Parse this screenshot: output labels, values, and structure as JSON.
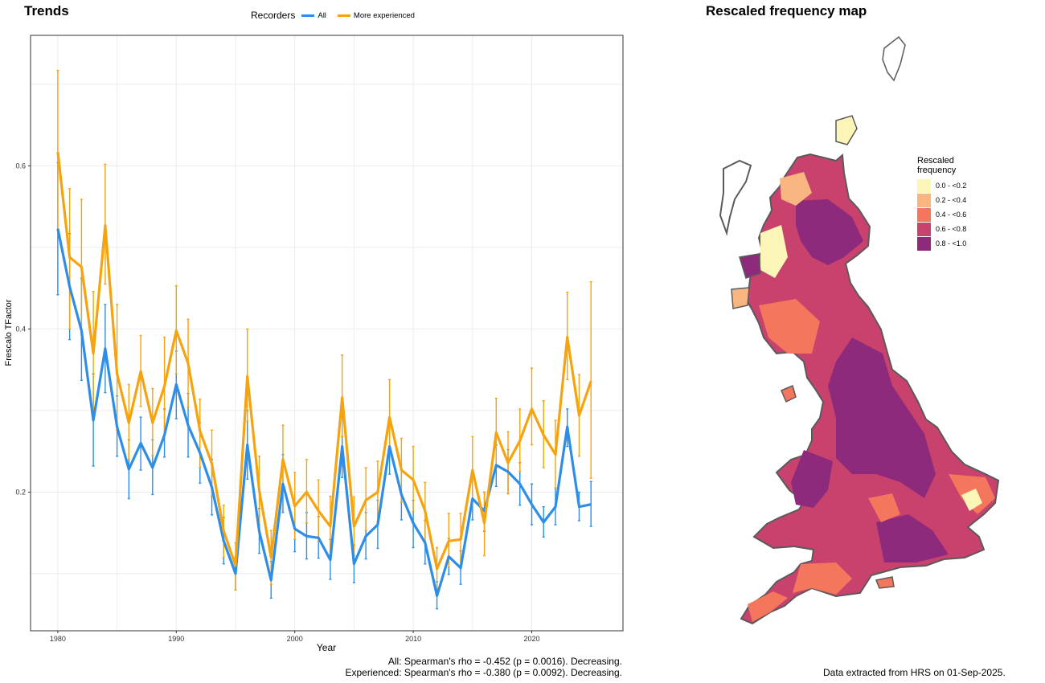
{
  "trends_panel": {
    "title": "Trends",
    "legend_title": "Recorders",
    "stats": {
      "all": "All: Spearman's rho = -0.452 (p = 0.0016). Decreasing.",
      "experienced": "Experienced: Spearman's rho = -0.380 (p = 0.0092). Decreasing."
    }
  },
  "map_panel": {
    "title": "Rescaled frequency map",
    "legend_title_line1": "Rescaled",
    "legend_title_line2": "frequency",
    "legend_items": [
      {
        "label": "0.0 - <0.2",
        "color": "#fcf5b8"
      },
      {
        "label": "0.2 - <0.4",
        "color": "#f9b57f"
      },
      {
        "label": "0.4 - <0.6",
        "color": "#f4765c"
      },
      {
        "label": "0.6 - <0.8",
        "color": "#c9416d"
      },
      {
        "label": "0.8 - <1.0",
        "color": "#8e2a7c"
      }
    ],
    "note": "Data extracted from HRS on 01-Sep-2025."
  },
  "chart_data": {
    "type": "line",
    "xlabel": "Year",
    "ylabel": "Frescalo TFactor",
    "xlim": [
      1977.7,
      2027.7
    ],
    "ylim": [
      0.03,
      0.76
    ],
    "xticks": [
      1980,
      1990,
      2000,
      2010,
      2020
    ],
    "yticks": [
      0.2,
      0.4,
      0.6
    ],
    "ytick_labels": [
      "0.2",
      "0.4",
      "0.6"
    ],
    "grid": true,
    "legend_placement": "top",
    "x": [
      1980,
      1981,
      1982,
      1983,
      1984,
      1985,
      1986,
      1987,
      1988,
      1989,
      1990,
      1991,
      1992,
      1993,
      1994,
      1995,
      1996,
      1997,
      1998,
      1999,
      2000,
      2001,
      2002,
      2003,
      2004,
      2005,
      2006,
      2007,
      2008,
      2009,
      2010,
      2011,
      2012,
      2013,
      2014,
      2015,
      2016,
      2017,
      2018,
      2019,
      2020,
      2021,
      2022,
      2023,
      2024,
      2025
    ],
    "series": [
      {
        "name": "All",
        "color": "#2e8de6",
        "values": [
          0.523,
          0.452,
          0.398,
          0.288,
          0.376,
          0.28,
          0.228,
          0.26,
          0.23,
          0.27,
          0.332,
          0.282,
          0.248,
          0.206,
          0.14,
          0.1,
          0.258,
          0.152,
          0.092,
          0.21,
          0.155,
          0.146,
          0.144,
          0.117,
          0.256,
          0.112,
          0.146,
          0.16,
          0.256,
          0.197,
          0.162,
          0.138,
          0.073,
          0.121,
          0.107,
          0.192,
          0.177,
          0.233,
          0.225,
          0.21,
          0.185,
          0.163,
          0.182,
          0.28,
          0.182,
          0.185
        ],
        "lower": [
          0.442,
          0.387,
          0.337,
          0.232,
          0.322,
          0.244,
          0.192,
          0.227,
          0.197,
          0.243,
          0.29,
          0.243,
          0.211,
          0.172,
          0.112,
          0.08,
          0.216,
          0.125,
          0.07,
          0.175,
          0.127,
          0.118,
          0.119,
          0.093,
          0.218,
          0.089,
          0.118,
          0.131,
          0.222,
          0.166,
          0.132,
          0.112,
          0.057,
          0.099,
          0.087,
          0.166,
          0.152,
          0.207,
          0.198,
          0.184,
          0.16,
          0.145,
          0.16,
          0.256,
          0.165,
          0.158
        ],
        "upper": [
          0.604,
          0.517,
          0.462,
          0.345,
          0.43,
          0.318,
          0.264,
          0.292,
          0.264,
          0.302,
          0.373,
          0.321,
          0.285,
          0.24,
          0.169,
          0.12,
          0.3,
          0.18,
          0.115,
          0.246,
          0.183,
          0.175,
          0.17,
          0.142,
          0.294,
          0.135,
          0.175,
          0.19,
          0.29,
          0.228,
          0.19,
          0.165,
          0.09,
          0.143,
          0.128,
          0.218,
          0.2,
          0.258,
          0.252,
          0.236,
          0.21,
          0.182,
          0.205,
          0.302,
          0.2,
          0.213
        ]
      },
      {
        "name": "More experienced",
        "color": "#f5a30f",
        "values": [
          0.617,
          0.488,
          0.476,
          0.37,
          0.527,
          0.345,
          0.285,
          0.348,
          0.285,
          0.33,
          0.398,
          0.358,
          0.275,
          0.235,
          0.152,
          0.11,
          0.342,
          0.202,
          0.12,
          0.24,
          0.183,
          0.2,
          0.177,
          0.158,
          0.316,
          0.158,
          0.19,
          0.2,
          0.292,
          0.227,
          0.215,
          0.177,
          0.106,
          0.14,
          0.142,
          0.227,
          0.162,
          0.273,
          0.236,
          0.263,
          0.302,
          0.27,
          0.246,
          0.39,
          0.294,
          0.336
        ],
        "lower": [
          0.522,
          0.4,
          0.393,
          0.296,
          0.455,
          0.276,
          0.24,
          0.305,
          0.245,
          0.27,
          0.345,
          0.304,
          0.23,
          0.195,
          0.12,
          0.08,
          0.287,
          0.16,
          0.087,
          0.2,
          0.142,
          0.162,
          0.14,
          0.123,
          0.268,
          0.122,
          0.153,
          0.164,
          0.25,
          0.188,
          0.176,
          0.14,
          0.082,
          0.108,
          0.11,
          0.19,
          0.122,
          0.23,
          0.198,
          0.225,
          0.258,
          0.23,
          0.205,
          0.338,
          0.244,
          0.217
        ],
        "upper": [
          0.717,
          0.572,
          0.559,
          0.446,
          0.602,
          0.43,
          0.332,
          0.392,
          0.327,
          0.39,
          0.453,
          0.412,
          0.314,
          0.276,
          0.184,
          0.138,
          0.4,
          0.244,
          0.153,
          0.282,
          0.224,
          0.24,
          0.215,
          0.195,
          0.368,
          0.194,
          0.23,
          0.238,
          0.338,
          0.266,
          0.256,
          0.212,
          0.132,
          0.174,
          0.174,
          0.268,
          0.2,
          0.315,
          0.274,
          0.302,
          0.352,
          0.312,
          0.288,
          0.445,
          0.344,
          0.458
        ]
      }
    ]
  }
}
